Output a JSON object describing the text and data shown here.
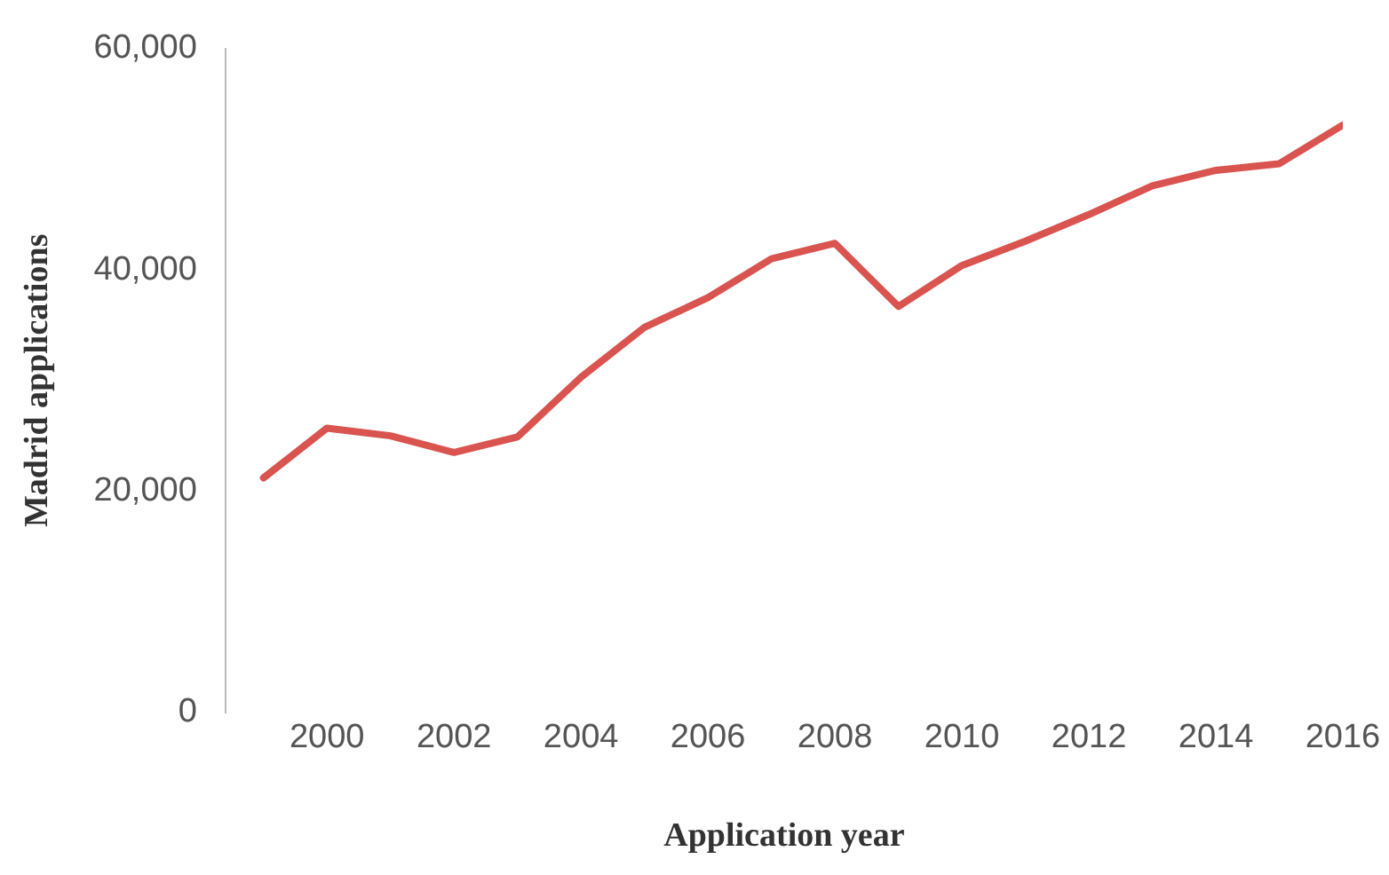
{
  "chart_data": {
    "type": "line",
    "xlabel": "Application year",
    "ylabel": "Madrid applications",
    "x": [
      1999,
      2000,
      2001,
      2002,
      2003,
      2004,
      2005,
      2006,
      2007,
      2008,
      2009,
      2010,
      2011,
      2012,
      2013,
      2014,
      2015,
      2016
    ],
    "series": [
      {
        "color": "#d9534f",
        "values": [
          21200,
          25700,
          25000,
          23500,
          24900,
          30300,
          34800,
          37500,
          41000,
          42400,
          36700,
          40400,
          42600,
          45000,
          47600,
          49000,
          49600,
          53100
        ]
      }
    ],
    "xlim": [
      1998.4,
      2016
    ],
    "xticks": [
      2000,
      2002,
      2004,
      2006,
      2008,
      2010,
      2012,
      2014,
      2016
    ],
    "ylim": [
      0,
      60000
    ],
    "yticks": [
      {
        "value": 0,
        "label": "0"
      },
      {
        "value": 20000,
        "label": "20,000"
      },
      {
        "value": 40000,
        "label": "40,000"
      },
      {
        "value": 60000,
        "label": "60,000"
      }
    ],
    "grid": false,
    "legend": false,
    "marker": "none",
    "line_style": "solid"
  }
}
